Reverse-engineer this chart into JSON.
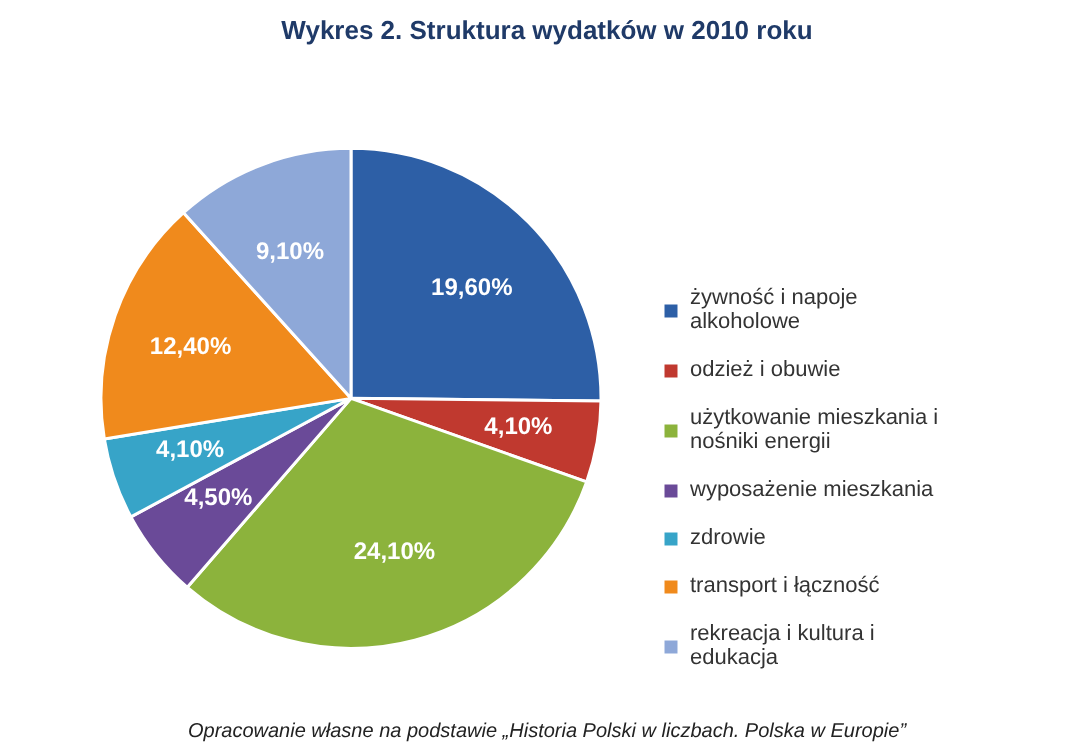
{
  "chart_data": {
    "type": "pie",
    "title": "Wykres 2. Struktura wydatków w 2010 roku",
    "categories": [
      "żywność i napoje alkoholowe",
      "odzież i obuwie",
      "użytkowanie mieszkania i nośniki energii",
      "wyposażenie mieszkania",
      "zdrowie",
      "transport i łączność",
      "rekreacja i kultura i edukacja"
    ],
    "values": [
      19.6,
      4.1,
      24.1,
      4.5,
      4.1,
      12.4,
      9.1
    ],
    "value_labels": [
      "19,60%",
      "4,10%",
      "24,10%",
      "4,50%",
      "4,10%",
      "12,40%",
      "9,10%"
    ],
    "colors": [
      "#2d5fa6",
      "#c0392f",
      "#8cb33c",
      "#6a4a98",
      "#37a4c8",
      "#f08a1c",
      "#8ea8d8"
    ],
    "legend": "right",
    "annotations": [
      "Opracowanie własne na podstawie „Historia Polski w liczbach. Polska w Europie”"
    ]
  }
}
